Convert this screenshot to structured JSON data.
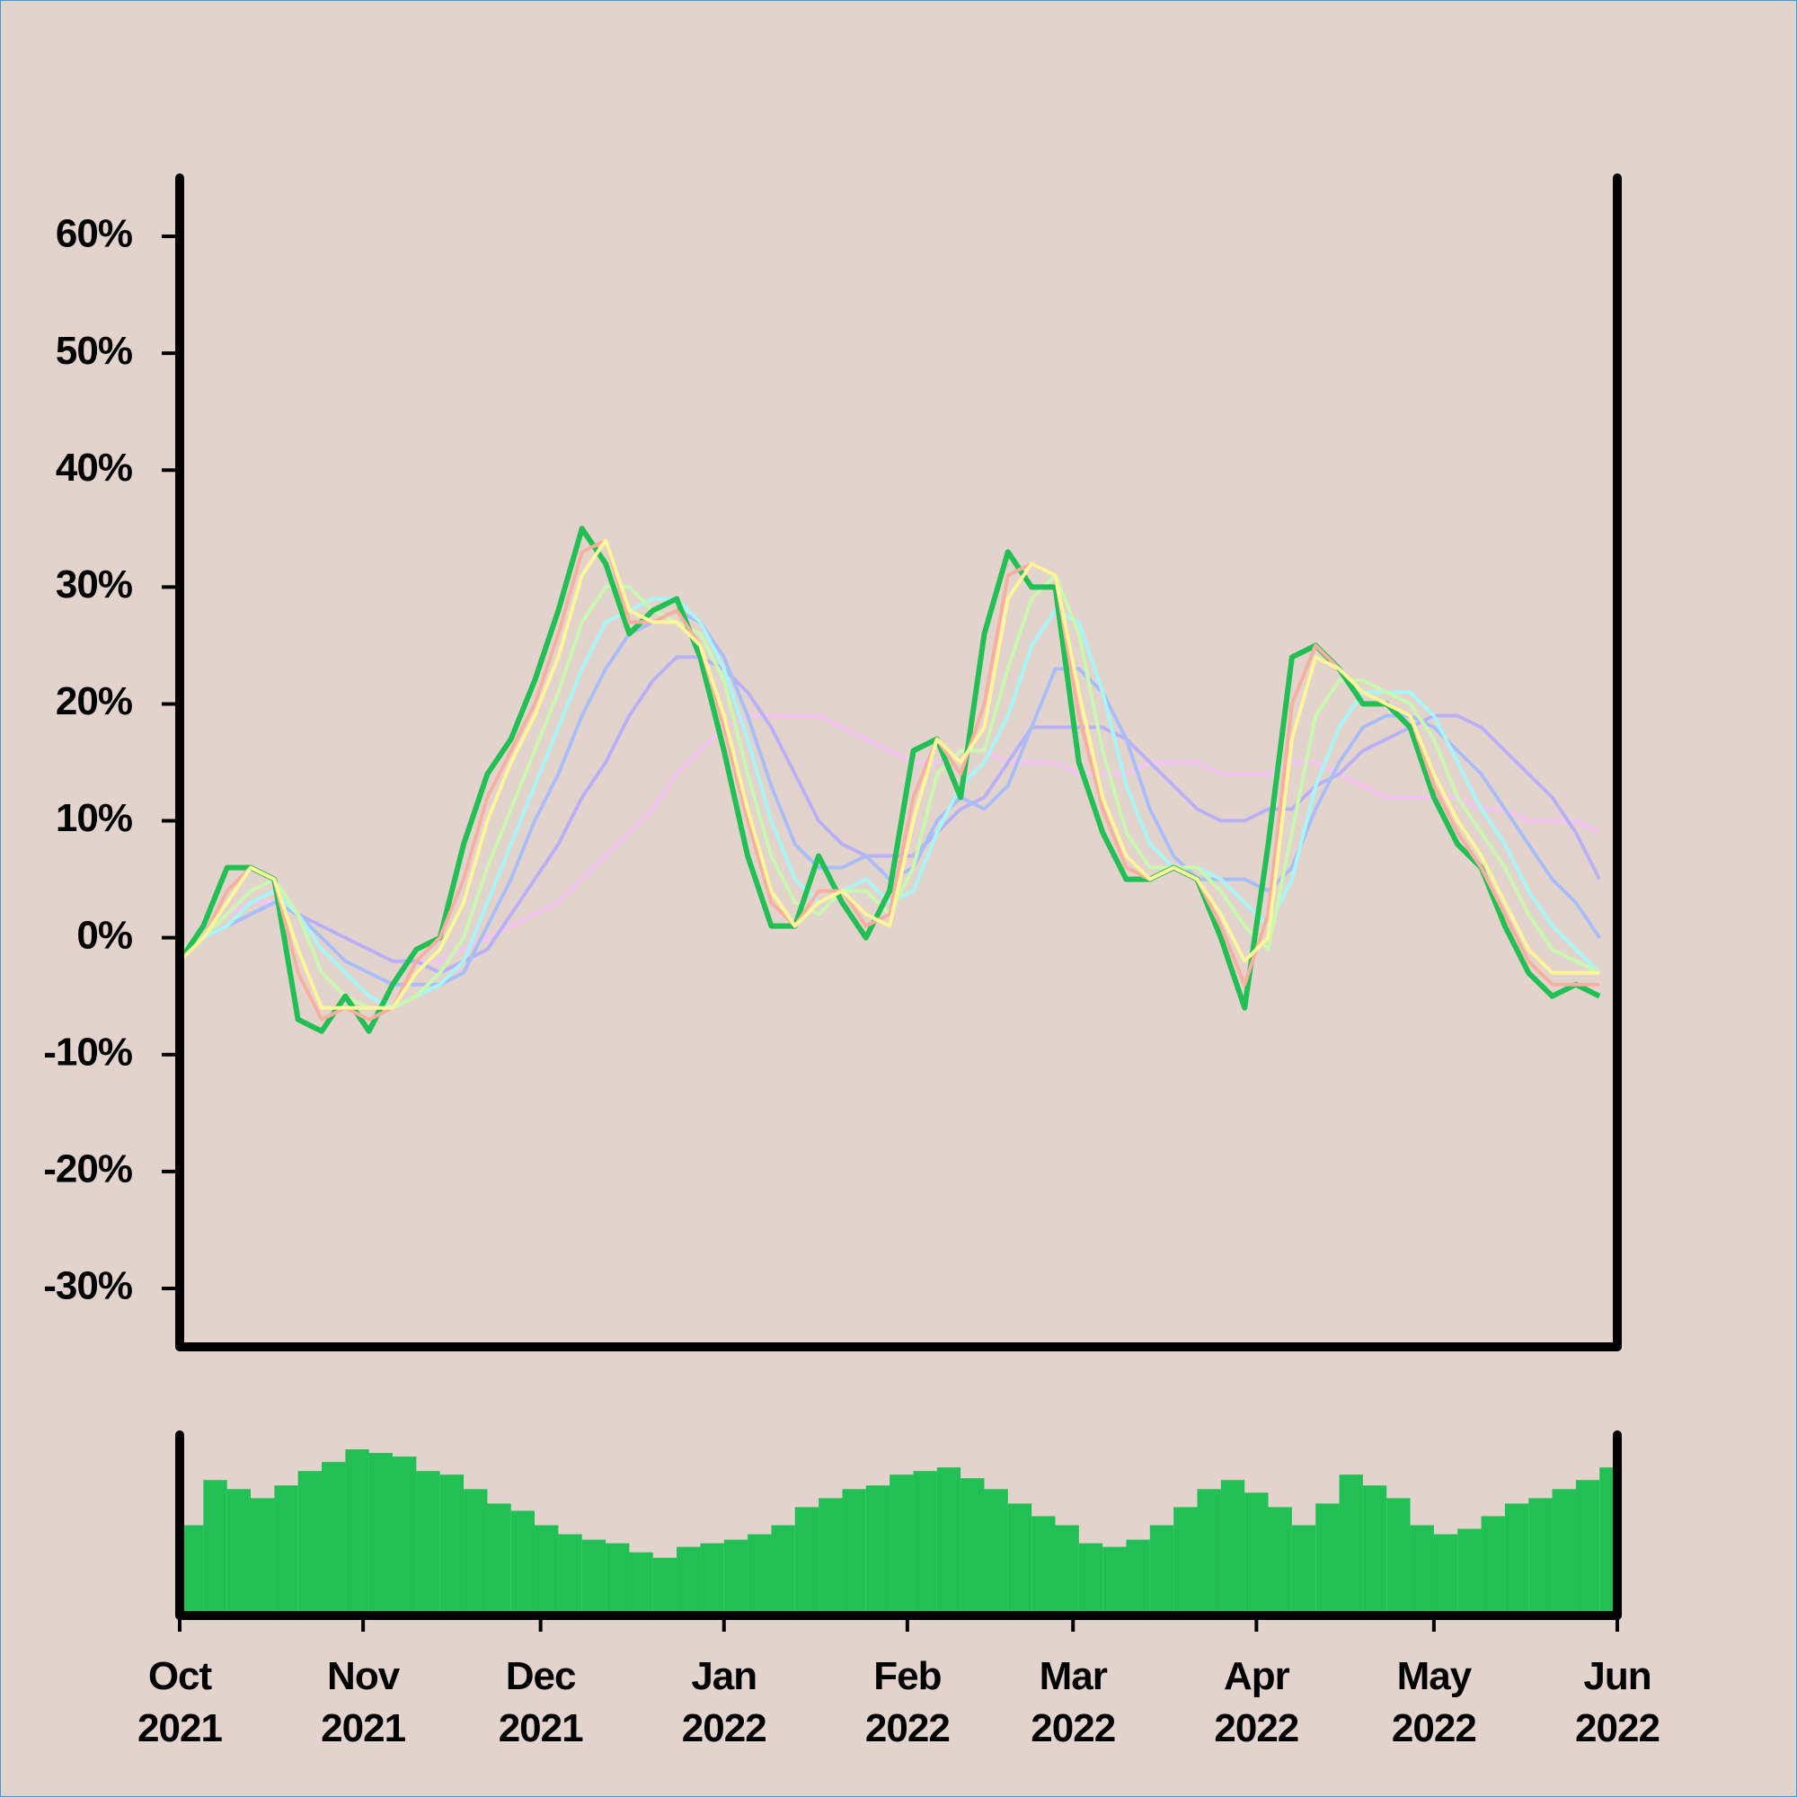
{
  "chart_data": [
    {
      "type": "line",
      "x": [
        0,
        4,
        8,
        12,
        16,
        20,
        24,
        28,
        32,
        36,
        40,
        44,
        48,
        52,
        56,
        60,
        64,
        68,
        72,
        76,
        80,
        84,
        88,
        92,
        96,
        100,
        104,
        108,
        112,
        116,
        120,
        124,
        128,
        132,
        136,
        140,
        144,
        148,
        152,
        156,
        160,
        164,
        168,
        172,
        176,
        180,
        184,
        188,
        192,
        196,
        200,
        204,
        208,
        212,
        216,
        220,
        224,
        228,
        232,
        236,
        240
      ],
      "xlim": [
        0,
        243
      ],
      "ylim": [
        -35,
        65
      ],
      "yticks": [
        {
          "value": -30,
          "label": "-30%"
        },
        {
          "value": -20,
          "label": "-20%"
        },
        {
          "value": -10,
          "label": "-10%"
        },
        {
          "value": 0,
          "label": "0%"
        },
        {
          "value": 10,
          "label": "10%"
        },
        {
          "value": 20,
          "label": "20%"
        },
        {
          "value": 30,
          "label": "30%"
        },
        {
          "value": 40,
          "label": "40%"
        },
        {
          "value": 50,
          "label": "50%"
        },
        {
          "value": 60,
          "label": "60%"
        }
      ],
      "series": [
        {
          "color": "#f5c4f5",
          "values": [
            -1,
            0,
            2,
            3,
            3,
            2,
            1,
            0,
            -1,
            -2,
            -2,
            -2,
            -1,
            0,
            1,
            2,
            3,
            5,
            7,
            9,
            11,
            14,
            16,
            18,
            19,
            19,
            19,
            19,
            18,
            17,
            16,
            15,
            15,
            16,
            16,
            15,
            15,
            15,
            14,
            14,
            14,
            15,
            15,
            15,
            14,
            14,
            14,
            15,
            15,
            14,
            13,
            12,
            12,
            12,
            12,
            11,
            11,
            10,
            10,
            10,
            9
          ]
        },
        {
          "color": "#b9b0f5",
          "values": [
            -1,
            0,
            1,
            2,
            3,
            2,
            1,
            0,
            -1,
            -2,
            -2,
            -3,
            -2,
            -1,
            2,
            5,
            8,
            12,
            15,
            19,
            22,
            24,
            24,
            23,
            21,
            18,
            14,
            10,
            8,
            7,
            7,
            7,
            9,
            11,
            12,
            15,
            18,
            18,
            18,
            18,
            17,
            15,
            13,
            11,
            10,
            10,
            11,
            11,
            13,
            14,
            16,
            17,
            18,
            19,
            19,
            18,
            16,
            14,
            12,
            9,
            5
          ]
        },
        {
          "color": "#a9bdf7",
          "values": [
            -1,
            0,
            1,
            2,
            3,
            2,
            0,
            -2,
            -3,
            -4,
            -4,
            -4,
            -3,
            1,
            5,
            10,
            14,
            19,
            23,
            26,
            27,
            28,
            27,
            24,
            19,
            13,
            8,
            6,
            6,
            7,
            5,
            6,
            10,
            12,
            11,
            13,
            18,
            23,
            23,
            21,
            17,
            11,
            7,
            5,
            5,
            5,
            4,
            6,
            11,
            15,
            18,
            19,
            19,
            18,
            16,
            14,
            11,
            8,
            5,
            3,
            0
          ]
        },
        {
          "color": "#a8f5f5",
          "values": [
            -1,
            0,
            1,
            3,
            4,
            2,
            -1,
            -3,
            -5,
            -6,
            -5,
            -4,
            -2,
            3,
            8,
            13,
            18,
            23,
            27,
            28,
            29,
            29,
            27,
            23,
            17,
            10,
            5,
            3,
            4,
            5,
            3,
            4,
            9,
            13,
            15,
            19,
            25,
            28,
            27,
            21,
            13,
            8,
            6,
            6,
            5,
            3,
            1,
            5,
            13,
            18,
            21,
            21,
            21,
            19,
            15,
            11,
            8,
            4,
            1,
            -1,
            -3
          ]
        },
        {
          "color": "#c9f7b0",
          "values": [
            -1,
            0,
            2,
            4,
            5,
            2,
            -3,
            -5,
            -6,
            -6,
            -5,
            -3,
            0,
            6,
            11,
            16,
            21,
            27,
            30,
            30,
            28,
            27,
            26,
            22,
            14,
            7,
            3,
            2,
            4,
            4,
            2,
            6,
            14,
            16,
            16,
            23,
            29,
            31,
            26,
            16,
            9,
            6,
            6,
            6,
            4,
            1,
            -1,
            9,
            19,
            22,
            22,
            21,
            20,
            17,
            12,
            9,
            6,
            2,
            -1,
            -2,
            -3
          ]
        },
        {
          "color": "#22bf55",
          "values": [
            -2,
            1,
            6,
            6,
            5,
            -7,
            -8,
            -5,
            -8,
            -4,
            -1,
            0,
            8,
            14,
            17,
            22,
            28,
            35,
            32,
            26,
            28,
            29,
            24,
            16,
            7,
            1,
            1,
            7,
            3,
            0,
            4,
            16,
            17,
            12,
            26,
            33,
            30,
            30,
            15,
            9,
            5,
            5,
            6,
            5,
            0,
            -6,
            8,
            24,
            25,
            23,
            20,
            20,
            18,
            12,
            8,
            6,
            1,
            -3,
            -5,
            -4,
            -5
          ]
        },
        {
          "color": "#f7b0a0",
          "values": [
            -2,
            0,
            4,
            6,
            5,
            -3,
            -7,
            -6,
            -7,
            -6,
            -2,
            0,
            5,
            12,
            16,
            20,
            26,
            33,
            34,
            27,
            27,
            28,
            25,
            18,
            10,
            3,
            1,
            4,
            4,
            1,
            2,
            12,
            17,
            14,
            20,
            31,
            32,
            31,
            19,
            11,
            6,
            5,
            6,
            5,
            1,
            -4,
            2,
            20,
            25,
            23,
            21,
            20,
            19,
            13,
            9,
            6,
            2,
            -2,
            -4,
            -4,
            -4
          ]
        },
        {
          "color": "#fdf59a",
          "values": [
            -2,
            0,
            3,
            6,
            5,
            -1,
            -6,
            -6,
            -6,
            -6,
            -3,
            -1,
            3,
            10,
            15,
            19,
            24,
            31,
            34,
            28,
            27,
            27,
            25,
            19,
            11,
            4,
            1,
            3,
            4,
            2,
            1,
            10,
            17,
            15,
            18,
            29,
            32,
            31,
            21,
            12,
            7,
            5,
            6,
            5,
            2,
            -2,
            0,
            17,
            24,
            23,
            21,
            20,
            19,
            14,
            10,
            7,
            3,
            -1,
            -3,
            -3,
            -3
          ]
        }
      ]
    },
    {
      "type": "bar",
      "color": "#22bf55",
      "x": [
        0,
        4,
        8,
        12,
        16,
        20,
        24,
        28,
        32,
        36,
        40,
        44,
        48,
        52,
        56,
        60,
        64,
        68,
        72,
        76,
        80,
        84,
        88,
        92,
        96,
        100,
        104,
        108,
        112,
        116,
        120,
        124,
        128,
        132,
        136,
        140,
        144,
        148,
        152,
        156,
        160,
        164,
        168,
        172,
        176,
        180,
        184,
        188,
        192,
        196,
        200,
        204,
        208,
        212,
        216,
        220,
        224,
        228,
        232,
        236,
        240
      ],
      "values": [
        50,
        75,
        70,
        65,
        72,
        80,
        85,
        92,
        90,
        88,
        80,
        78,
        70,
        62,
        58,
        50,
        45,
        42,
        40,
        35,
        32,
        38,
        40,
        42,
        45,
        50,
        60,
        65,
        70,
        72,
        78,
        80,
        82,
        76,
        70,
        62,
        55,
        50,
        40,
        38,
        42,
        50,
        60,
        70,
        75,
        68,
        60,
        50,
        62,
        78,
        72,
        65,
        50,
        45,
        48,
        55,
        62,
        65,
        70,
        75,
        82
      ],
      "xlim": [
        0,
        243
      ],
      "ylim": [
        0,
        100
      ],
      "xticks": [
        {
          "value": 0,
          "label": "Oct\n2021"
        },
        {
          "value": 31,
          "label": "Nov\n2021"
        },
        {
          "value": 61,
          "label": "Dec\n2021"
        },
        {
          "value": 92,
          "label": "Jan\n2022"
        },
        {
          "value": 123,
          "label": "Feb\n2022"
        },
        {
          "value": 151,
          "label": "Mar\n2022"
        },
        {
          "value": 182,
          "label": "Apr\n2022"
        },
        {
          "value": 212,
          "label": "May\n2022"
        },
        {
          "value": 243,
          "label": "Jun\n2022"
        }
      ]
    }
  ]
}
